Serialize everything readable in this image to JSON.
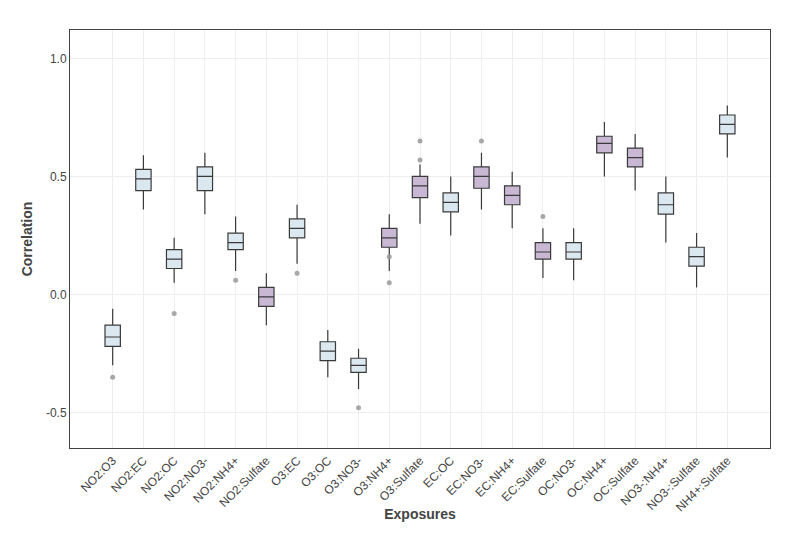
{
  "chart_data": {
    "type": "box",
    "xlabel": "Exposures",
    "ylabel": "Correlation",
    "categories": [
      "NO2:O3",
      "NO2:EC",
      "NO2:OC",
      "NO2:NO3-",
      "NO2:NH4+",
      "NO2:Sulfate",
      "O3:EC",
      "O3:OC",
      "O3:NO3-",
      "O3:NH4+",
      "O3:Sulfate",
      "EC:OC",
      "EC:NO3-",
      "EC:NH4+",
      "EC:Sulfate",
      "OC:NO3-",
      "OC:NH4+",
      "OC:Sulfate",
      "NO3-:NH4+",
      "NO3-:Sulfate",
      "NH4+:Sulfate"
    ],
    "colors": [
      "#dce8f0",
      "#dce8f0",
      "#dce8f0",
      "#dce8f0",
      "#dce8f0",
      "#c9b8d4",
      "#dce8f0",
      "#dce8f0",
      "#dce8f0",
      "#c9b8d4",
      "#c9b8d4",
      "#dce8f0",
      "#c9b8d4",
      "#c9b8d4",
      "#c9b8d4",
      "#dce8f0",
      "#c9b8d4",
      "#c9b8d4",
      "#dce8f0",
      "#dce8f0",
      "#dce8f0"
    ],
    "boxes": [
      {
        "q1": -0.22,
        "median": -0.18,
        "q3": -0.13,
        "whislo": -0.3,
        "whishi": -0.06,
        "fliers": [
          -0.35
        ]
      },
      {
        "q1": 0.44,
        "median": 0.49,
        "q3": 0.53,
        "whislo": 0.36,
        "whishi": 0.59,
        "fliers": []
      },
      {
        "q1": 0.11,
        "median": 0.15,
        "q3": 0.19,
        "whislo": 0.05,
        "whishi": 0.24,
        "fliers": [
          -0.08
        ]
      },
      {
        "q1": 0.44,
        "median": 0.5,
        "q3": 0.54,
        "whislo": 0.34,
        "whishi": 0.6,
        "fliers": []
      },
      {
        "q1": 0.19,
        "median": 0.22,
        "q3": 0.26,
        "whislo": 0.1,
        "whishi": 0.33,
        "fliers": [
          0.06
        ]
      },
      {
        "q1": -0.05,
        "median": -0.01,
        "q3": 0.03,
        "whislo": -0.13,
        "whishi": 0.09,
        "fliers": []
      },
      {
        "q1": 0.24,
        "median": 0.28,
        "q3": 0.32,
        "whislo": 0.13,
        "whishi": 0.38,
        "fliers": [
          0.09
        ]
      },
      {
        "q1": -0.28,
        "median": -0.24,
        "q3": -0.2,
        "whislo": -0.35,
        "whishi": -0.15,
        "fliers": []
      },
      {
        "q1": -0.33,
        "median": -0.3,
        "q3": -0.27,
        "whislo": -0.4,
        "whishi": -0.23,
        "fliers": [
          -0.48
        ]
      },
      {
        "q1": 0.2,
        "median": 0.24,
        "q3": 0.28,
        "whislo": 0.1,
        "whishi": 0.34,
        "fliers": [
          0.05,
          0.16
        ]
      },
      {
        "q1": 0.41,
        "median": 0.46,
        "q3": 0.5,
        "whislo": 0.3,
        "whishi": 0.55,
        "fliers": [
          0.57,
          0.65
        ]
      },
      {
        "q1": 0.35,
        "median": 0.39,
        "q3": 0.43,
        "whislo": 0.25,
        "whishi": 0.5,
        "fliers": []
      },
      {
        "q1": 0.45,
        "median": 0.5,
        "q3": 0.54,
        "whislo": 0.36,
        "whishi": 0.6,
        "fliers": [
          0.65
        ]
      },
      {
        "q1": 0.38,
        "median": 0.42,
        "q3": 0.46,
        "whislo": 0.28,
        "whishi": 0.52,
        "fliers": []
      },
      {
        "q1": 0.15,
        "median": 0.18,
        "q3": 0.22,
        "whislo": 0.07,
        "whishi": 0.28,
        "fliers": [
          0.33
        ]
      },
      {
        "q1": 0.15,
        "median": 0.18,
        "q3": 0.22,
        "whislo": 0.06,
        "whishi": 0.28,
        "fliers": []
      },
      {
        "q1": 0.6,
        "median": 0.64,
        "q3": 0.67,
        "whislo": 0.5,
        "whishi": 0.73,
        "fliers": []
      },
      {
        "q1": 0.54,
        "median": 0.58,
        "q3": 0.62,
        "whislo": 0.44,
        "whishi": 0.68,
        "fliers": []
      },
      {
        "q1": 0.34,
        "median": 0.38,
        "q3": 0.43,
        "whislo": 0.22,
        "whishi": 0.5,
        "fliers": []
      },
      {
        "q1": 0.12,
        "median": 0.16,
        "q3": 0.2,
        "whislo": 0.03,
        "whishi": 0.26,
        "fliers": []
      },
      {
        "q1": 0.68,
        "median": 0.72,
        "q3": 0.76,
        "whislo": 0.58,
        "whishi": 0.8,
        "fliers": []
      }
    ],
    "ylim": [
      -0.65,
      1.12
    ],
    "yticks": [
      -0.5,
      {
        "value": 0,
        "label": "0.0"
      },
      0.5,
      {
        "value": 1,
        "label": "1.0"
      }
    ],
    "grid": true
  }
}
